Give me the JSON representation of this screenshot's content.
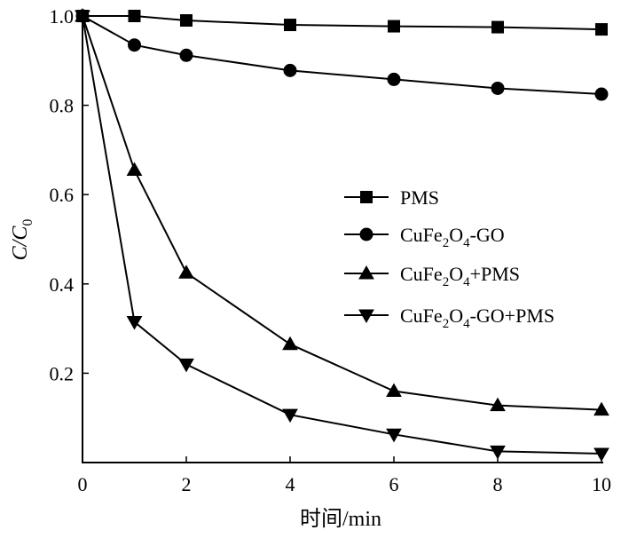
{
  "chart_data": {
    "type": "line",
    "xlabel": "时间/min",
    "ylabel": {
      "main": "C/C",
      "sub": "0"
    },
    "xlim": [
      0,
      10
    ],
    "ylim": [
      0,
      1.0
    ],
    "x_ticks": [
      0,
      2,
      4,
      6,
      8,
      10
    ],
    "y_ticks": [
      0.2,
      0.4,
      0.6,
      0.8,
      1.0
    ],
    "grid": false,
    "legend_position": "right",
    "x": [
      0,
      1,
      2,
      4,
      6,
      8,
      10
    ],
    "series": [
      {
        "name": "PMS",
        "name_parts": [
          {
            "t": "PMS"
          }
        ],
        "marker": "square",
        "values": [
          1.0,
          1.0,
          0.99,
          0.98,
          0.977,
          0.975,
          0.97
        ]
      },
      {
        "name": "CuFe2O4-GO",
        "name_parts": [
          {
            "t": "CuFe"
          },
          {
            "t": "2",
            "sub": true
          },
          {
            "t": "O"
          },
          {
            "t": "4",
            "sub": true
          },
          {
            "t": "-GO"
          }
        ],
        "marker": "circle",
        "values": [
          1.0,
          0.935,
          0.912,
          0.878,
          0.858,
          0.838,
          0.825
        ]
      },
      {
        "name": "CuFe2O4+PMS",
        "name_parts": [
          {
            "t": "CuFe"
          },
          {
            "t": "2",
            "sub": true
          },
          {
            "t": "O"
          },
          {
            "t": "4",
            "sub": true
          },
          {
            "t": "+PMS"
          }
        ],
        "marker": "triangle-up",
        "values": [
          1.0,
          0.655,
          0.425,
          0.265,
          0.16,
          0.128,
          0.118
        ]
      },
      {
        "name": "CuFe2O4-GO+PMS",
        "name_parts": [
          {
            "t": "CuFe"
          },
          {
            "t": "2",
            "sub": true
          },
          {
            "t": "O"
          },
          {
            "t": "4",
            "sub": true
          },
          {
            "t": "-GO+PMS"
          }
        ],
        "marker": "triangle-down",
        "values": [
          1.0,
          0.315,
          0.22,
          0.107,
          0.063,
          0.025,
          0.02
        ]
      }
    ]
  }
}
